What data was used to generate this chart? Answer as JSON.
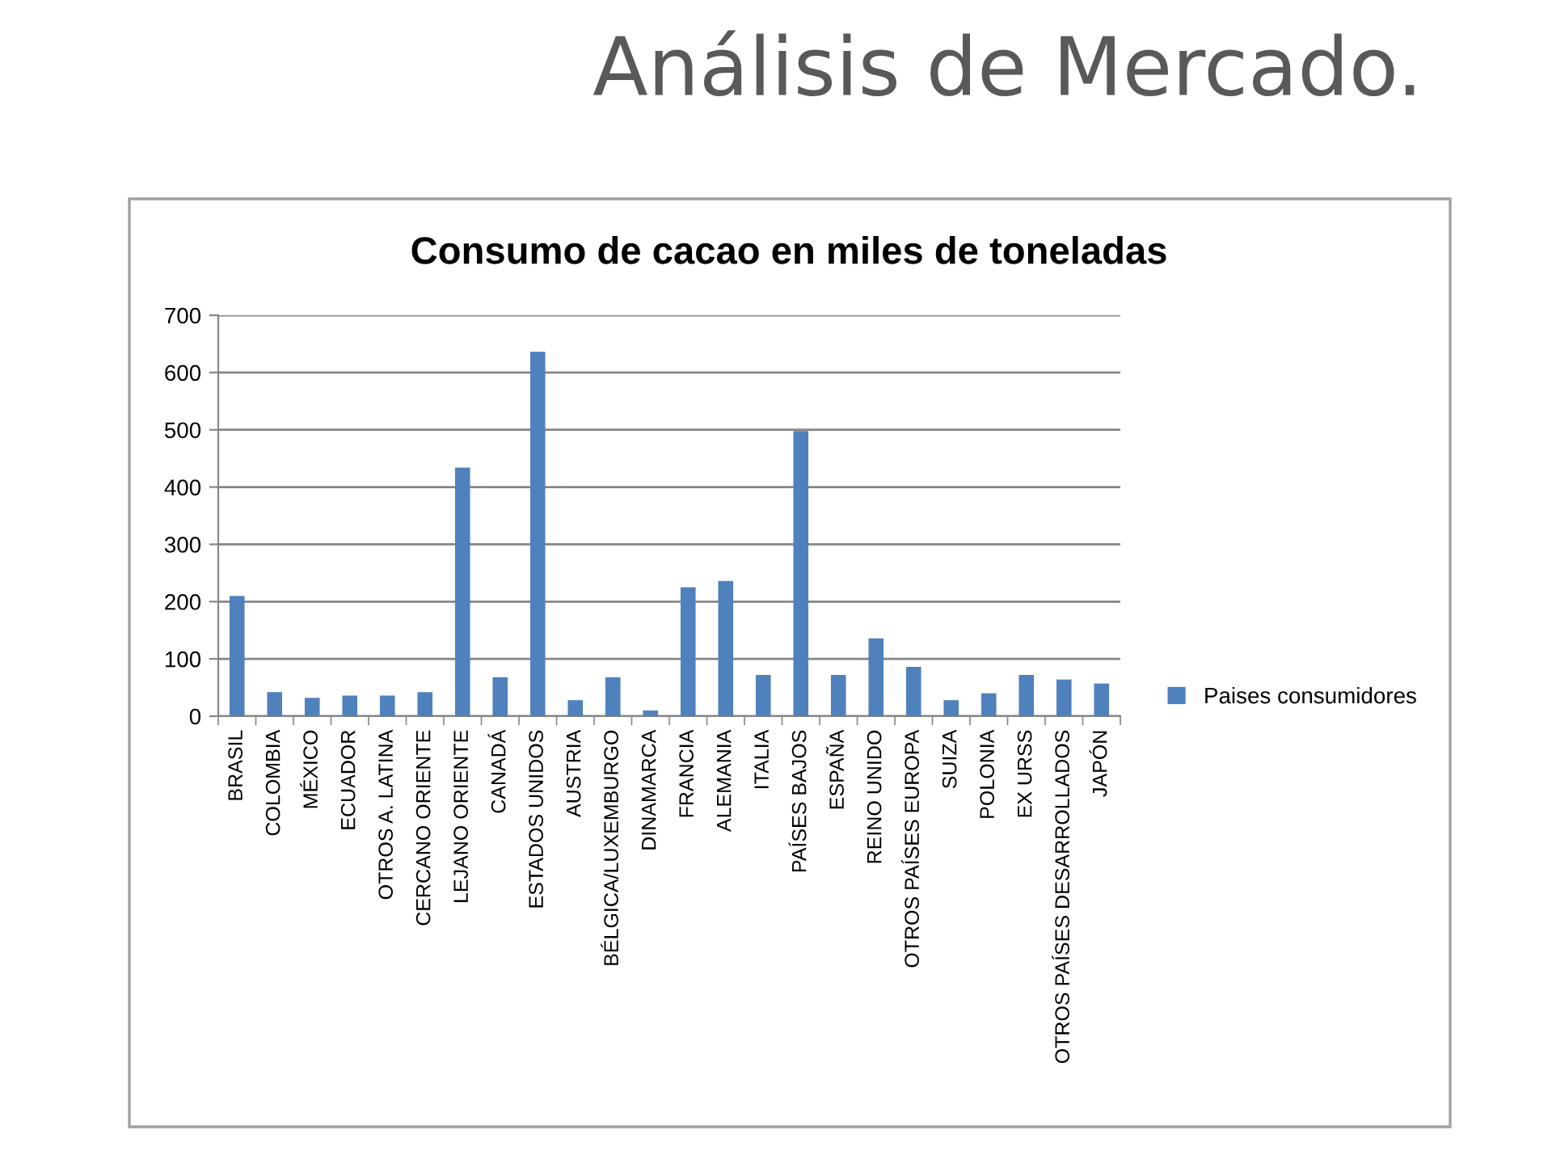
{
  "chart_data": {
    "type": "bar",
    "title": "Análisis de Mercado.",
    "subtitle": "Consumo de cacao en miles de toneladas",
    "categories": [
      "BRASIL",
      "COLOMBIA",
      "MÉXICO",
      "ECUADOR",
      "OTROS A. LATINA",
      "CERCANO ORIENTE",
      "LEJANO ORIENTE",
      "CANADÁ",
      "ESTADOS UNIDOS",
      "AUSTRIA",
      "BÉLGICA/LUXEMBURGO",
      "DINAMARCA",
      "FRANCIA",
      "ALEMANIA",
      "ITALIA",
      "PAÍSES BAJOS",
      "ESPAÑA",
      "REINO UNIDO",
      "OTROS PAÍSES EUROPA",
      "SUIZA",
      "POLONIA",
      "EX URSS",
      "OTROS PAÍSES DESARROLLADOS",
      "JAPÓN"
    ],
    "series": [
      {
        "name": "Paises consumidores",
        "color": "#4f81bd",
        "values": [
          210,
          42,
          32,
          36,
          36,
          42,
          434,
          68,
          636,
          28,
          68,
          10,
          225,
          236,
          72,
          498,
          72,
          136,
          86,
          28,
          40,
          72,
          64,
          57
        ]
      }
    ],
    "ylim": [
      0,
      700
    ],
    "yticks": [
      0,
      100,
      200,
      300,
      400,
      500,
      600,
      700
    ],
    "grid": "y",
    "legend": "right"
  }
}
